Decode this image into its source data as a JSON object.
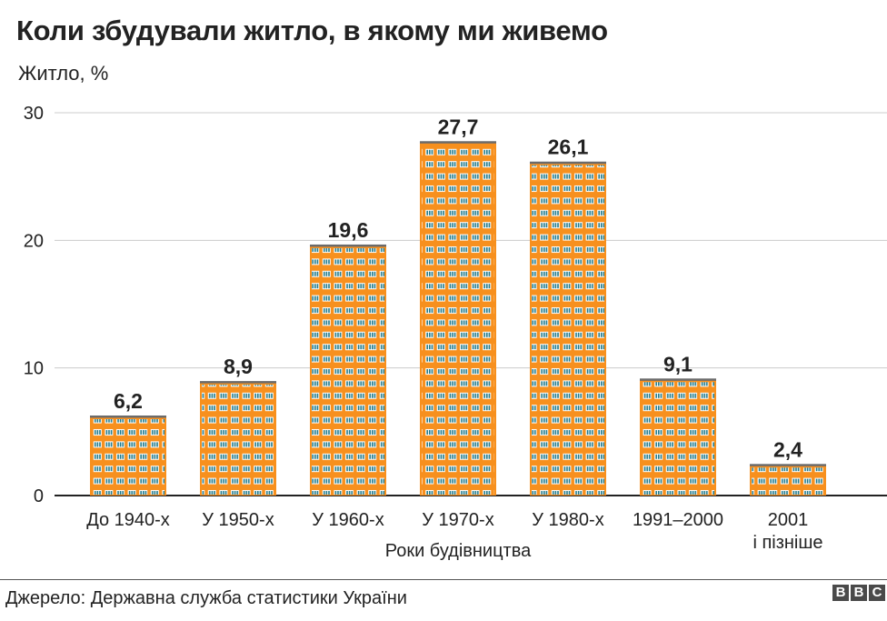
{
  "title": "Коли збудували житло, в якому ми живемо",
  "subtitle": "Житло, %",
  "source": "Джерело: Державна служба статистики України",
  "logo": [
    "B",
    "B",
    "C"
  ],
  "colors": {
    "bar": "#f7901e",
    "roof": "#6b6b6b",
    "window": "#ffffff",
    "pane": "#1f7a8c",
    "grid": "#cccccc",
    "axis": "#222222"
  },
  "chart_data": {
    "type": "bar",
    "title": "Коли збудували житло, в якому ми живемо",
    "ylabel": "Житло, %",
    "xlabel": "Роки будівництва",
    "categories": [
      [
        "До 1940-х"
      ],
      [
        "У 1950-х"
      ],
      [
        "У 1960-х"
      ],
      [
        "У 1970-х"
      ],
      [
        "У 1980-х"
      ],
      [
        "1991–2000"
      ],
      [
        "2001",
        "і пізніше"
      ]
    ],
    "values": [
      6.2,
      8.9,
      19.6,
      27.7,
      26.1,
      9.1,
      2.4
    ],
    "value_labels": [
      "6,2",
      "8,9",
      "19,6",
      "27,7",
      "26,1",
      "9,1",
      "2,4"
    ],
    "yticks": [
      0,
      10,
      20,
      30
    ],
    "ylim": [
      0,
      30
    ],
    "grid": true
  }
}
